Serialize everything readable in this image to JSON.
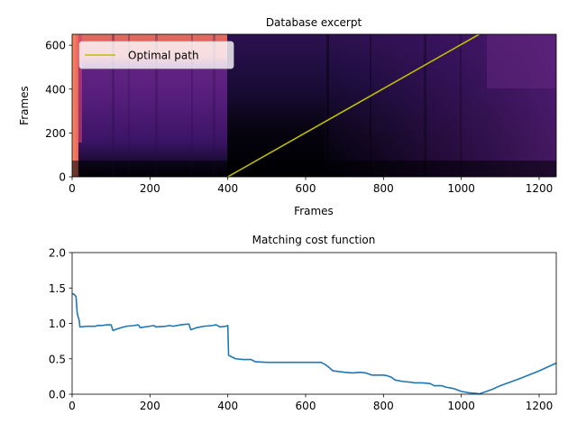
{
  "chart_data": [
    {
      "type": "heatmap",
      "title": "Database excerpt",
      "xlabel": "Frames",
      "ylabel": "Frames",
      "xlim": [
        0,
        1244
      ],
      "ylim": [
        0,
        650
      ],
      "xticks": [
        0,
        200,
        400,
        600,
        800,
        1000,
        1200
      ],
      "yticks": [
        0,
        200,
        400,
        600
      ],
      "colormap": "magma",
      "legend": {
        "placement": "upper-left",
        "entries": [
          "Optimal path"
        ]
      },
      "series": [
        {
          "name": "Optimal path",
          "color": "#bfbf00",
          "x": [
            400,
            1046
          ],
          "y": [
            0,
            650
          ]
        }
      ]
    },
    {
      "type": "line",
      "title": "Matching cost function",
      "xlabel": "",
      "ylabel": "",
      "xlim": [
        0,
        1244
      ],
      "ylim": [
        0,
        2.0
      ],
      "xticks": [
        0,
        200,
        400,
        600,
        800,
        1000,
        1200
      ],
      "yticks": [
        "0.0",
        "0.5",
        "1.0",
        "1.5",
        "2.0"
      ],
      "series": [
        {
          "color": "#1f77b4",
          "x": [
            0,
            5,
            10,
            13,
            15,
            18,
            20,
            40,
            60,
            65,
            75,
            90,
            100,
            105,
            120,
            140,
            160,
            170,
            175,
            200,
            210,
            215,
            240,
            250,
            260,
            280,
            295,
            300,
            305,
            320,
            340,
            360,
            370,
            380,
            395,
            400,
            402,
            420,
            440,
            460,
            470,
            500,
            550,
            600,
            640,
            650,
            660,
            670,
            700,
            720,
            740,
            755,
            770,
            800,
            810,
            820,
            830,
            850,
            870,
            880,
            900,
            920,
            930,
            950,
            960,
            980,
            1000,
            1020,
            1040,
            1046,
            1060,
            1080,
            1100,
            1150,
            1200,
            1244
          ],
          "y": [
            1.42,
            1.41,
            1.38,
            1.15,
            1.1,
            1.05,
            0.95,
            0.96,
            0.96,
            0.97,
            0.97,
            0.98,
            0.98,
            0.9,
            0.93,
            0.96,
            0.97,
            0.98,
            0.94,
            0.96,
            0.97,
            0.95,
            0.96,
            0.97,
            0.96,
            0.98,
            0.99,
            0.99,
            0.91,
            0.94,
            0.96,
            0.97,
            0.98,
            0.95,
            0.96,
            0.97,
            0.55,
            0.5,
            0.49,
            0.49,
            0.46,
            0.45,
            0.45,
            0.45,
            0.45,
            0.42,
            0.38,
            0.33,
            0.31,
            0.3,
            0.31,
            0.3,
            0.27,
            0.27,
            0.26,
            0.24,
            0.2,
            0.18,
            0.17,
            0.16,
            0.16,
            0.15,
            0.12,
            0.12,
            0.1,
            0.08,
            0.04,
            0.02,
            0.01,
            0.005,
            0.03,
            0.07,
            0.12,
            0.22,
            0.33,
            0.44
          ]
        }
      ]
    }
  ]
}
